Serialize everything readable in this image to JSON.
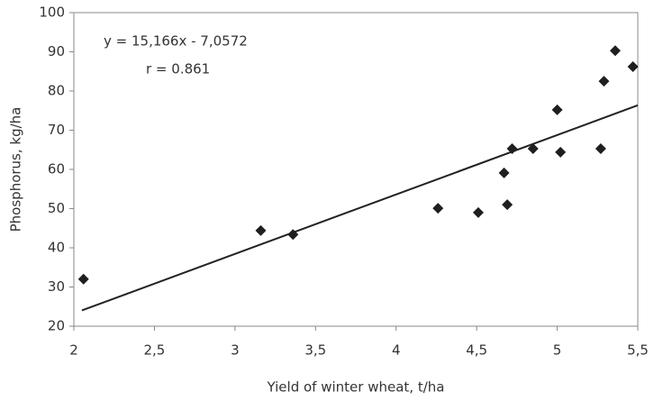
{
  "chart_data": {
    "type": "scatter",
    "x_label": "Yield of winter wheat, t/ha",
    "y_label": "Phosphorus, kg/ha",
    "annotations": [
      "y = 15,166x - 7,0572",
      "r = 0.861"
    ],
    "x": [
      2.06,
      3.16,
      3.36,
      4.26,
      4.51,
      4.69,
      4.67,
      4.72,
      4.85,
      5.02,
      5.0,
      5.27,
      5.29,
      5.36,
      5.47
    ],
    "values": [
      32,
      44.4,
      43.4,
      50.1,
      49,
      51,
      59.1,
      65.3,
      65.3,
      64.4,
      75.2,
      65.3,
      82.5,
      90.3,
      86.2
    ],
    "color": "#1f1f1f",
    "trendline": {
      "slope": 15.166,
      "intercept": -7.0572,
      "x": [
        2.05,
        5.5
      ],
      "color": "#222222"
    },
    "xlim": [
      2,
      5.5
    ],
    "xticks": [
      2,
      {
        "value": 2.5,
        "label": "2,5"
      },
      3,
      {
        "value": 3.5,
        "label": "3,5"
      },
      4,
      {
        "value": 4.5,
        "label": "4,5"
      },
      5,
      {
        "value": 5.5,
        "label": "5,5"
      }
    ],
    "ylim": [
      20,
      100
    ],
    "yticks": [
      20,
      30,
      40,
      50,
      60,
      70,
      80,
      90,
      100
    ],
    "grid": false
  }
}
